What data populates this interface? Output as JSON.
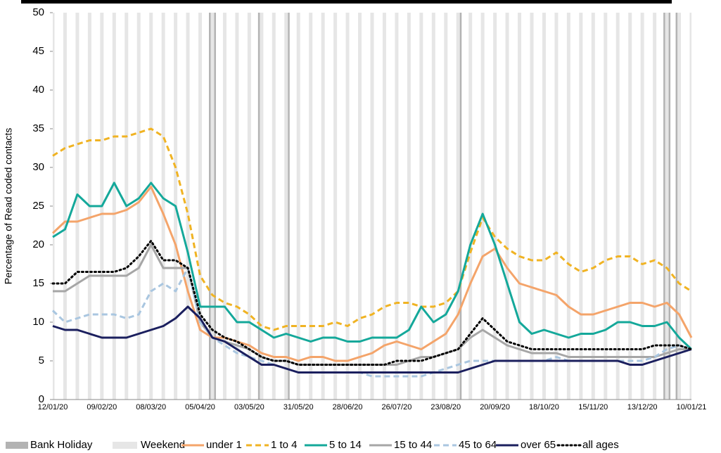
{
  "chart_data": {
    "type": "line",
    "y_label": "Percentage of Read coded contacts",
    "bank_holiday_label": "Bank Holiday",
    "weekend_label": "Weekend",
    "categories": [
      "12/01/20",
      null,
      null,
      null,
      "09/02/20",
      null,
      null,
      null,
      "08/03/20",
      null,
      null,
      null,
      "05/04/20",
      null,
      null,
      null,
      "03/05/20",
      null,
      null,
      null,
      "31/05/20",
      null,
      null,
      null,
      "28/06/20",
      null,
      null,
      null,
      "26/07/20",
      null,
      null,
      null,
      "23/08/20",
      null,
      null,
      null,
      "20/09/20",
      null,
      null,
      null,
      "18/10/20",
      null,
      null,
      null,
      "15/11/20",
      null,
      null,
      null,
      "13/12/20",
      null,
      null,
      null,
      "10/01/21"
    ],
    "ylim": [
      0,
      50
    ],
    "yticks": [
      0,
      5,
      10,
      15,
      20,
      25,
      30,
      35,
      40,
      45,
      50
    ],
    "series": [
      {
        "name": "under 1",
        "color": "#f4a46a",
        "style": "solid",
        "values": [
          21.5,
          23,
          23,
          23.5,
          24,
          24,
          24.5,
          25.5,
          27.5,
          24,
          20,
          14,
          9,
          8,
          8,
          7.5,
          7,
          6,
          5.5,
          5.5,
          5,
          5.5,
          5.5,
          5,
          5,
          5.5,
          6,
          7,
          7.5,
          7,
          6.5,
          7.5,
          8.5,
          11,
          15,
          18.5,
          19.5,
          17,
          15,
          14.5,
          14,
          13.5,
          12,
          11,
          11,
          11.5,
          12,
          12.5,
          12.5,
          12,
          12.5,
          11,
          8
        ]
      },
      {
        "name": "1 to 4",
        "color": "#f0b323",
        "style": "dashed",
        "values": [
          31.5,
          32.5,
          33,
          33.5,
          33.5,
          34,
          34,
          34.5,
          35,
          34,
          30,
          24,
          16,
          13.5,
          12.5,
          12,
          11,
          9.5,
          9,
          9.5,
          9.5,
          9.5,
          9.5,
          10,
          9.5,
          10.5,
          11,
          12,
          12.5,
          12.5,
          12,
          12,
          12.5,
          14,
          19,
          23.5,
          21,
          19.5,
          18.5,
          18,
          18,
          19,
          17.5,
          16.5,
          17,
          18,
          18.5,
          18.5,
          17.5,
          18,
          17,
          15,
          14
        ]
      },
      {
        "name": "5 to 14",
        "color": "#14a89a",
        "style": "solid",
        "values": [
          21,
          22,
          26.5,
          25,
          25,
          28,
          25,
          26,
          28,
          26,
          25,
          19,
          12,
          12,
          12,
          10,
          10,
          9,
          8,
          8.5,
          8,
          7.5,
          8,
          8,
          7.5,
          7.5,
          8,
          8,
          8,
          9,
          12,
          10,
          11,
          14,
          20,
          24,
          20,
          15,
          10,
          8.5,
          9,
          8.5,
          8,
          8.5,
          8.5,
          9,
          10,
          10,
          9.5,
          9.5,
          10,
          8,
          6.5
        ]
      },
      {
        "name": "15 to 44",
        "color": "#a6a6a6",
        "style": "solid",
        "values": [
          14,
          14,
          15,
          16,
          16,
          16,
          16,
          17,
          20,
          17,
          17,
          17,
          10,
          8,
          7.5,
          7,
          6.5,
          5.5,
          5,
          5,
          4.5,
          4.5,
          4.5,
          4.5,
          4.5,
          4.5,
          4.5,
          4.5,
          4.5,
          5,
          5.5,
          5.5,
          6,
          6.5,
          8,
          9,
          8,
          7,
          6.5,
          6,
          6,
          6,
          5.5,
          5.5,
          5.5,
          5.5,
          5.5,
          5.5,
          5.5,
          5.5,
          6,
          6.5,
          6.5
        ]
      },
      {
        "name": "45 to 64",
        "color": "#a9c6e0",
        "style": "dashed",
        "values": [
          11.5,
          10,
          10.5,
          11,
          11,
          11,
          10.5,
          11,
          14,
          15,
          14,
          17,
          10,
          8,
          7,
          6,
          5.5,
          5,
          4.5,
          4,
          3.5,
          3.5,
          3.5,
          3.5,
          3.5,
          3.5,
          3,
          3,
          3,
          3,
          3,
          3.5,
          4,
          4.5,
          5,
          5,
          5,
          5,
          5,
          5,
          5,
          5.5,
          5,
          5,
          5,
          5,
          5,
          5,
          5,
          5.5,
          6.5,
          7,
          6.5
        ]
      },
      {
        "name": "over 65",
        "color": "#1b1f5e",
        "style": "solid",
        "values": [
          9.5,
          9,
          9,
          8.5,
          8,
          8,
          8,
          8.5,
          9,
          9.5,
          10.5,
          12,
          10.5,
          8,
          7.5,
          6.5,
          5.5,
          4.5,
          4.5,
          4,
          3.5,
          3.5,
          3.5,
          3.5,
          3.5,
          3.5,
          3.5,
          3.5,
          3.5,
          3.5,
          3.5,
          3.5,
          3.5,
          3.5,
          4,
          4.5,
          5,
          5,
          5,
          5,
          5,
          5,
          5,
          5,
          5,
          5,
          5,
          4.5,
          4.5,
          5,
          5.5,
          6,
          6.5
        ]
      },
      {
        "name": "all ages",
        "color": "#000000",
        "style": "dotted",
        "values": [
          15,
          15,
          16.5,
          16.5,
          16.5,
          16.5,
          17,
          18.5,
          20.5,
          18,
          18,
          17,
          11,
          9,
          8,
          7.5,
          6.5,
          5.5,
          5,
          5,
          4.5,
          4.5,
          4.5,
          4.5,
          4.5,
          4.5,
          4.5,
          4.5,
          5,
          5,
          5,
          5.5,
          6,
          6.5,
          8.5,
          10.5,
          9,
          7.5,
          7,
          6.5,
          6.5,
          6.5,
          6.5,
          6.5,
          6.5,
          6.5,
          6.5,
          6.5,
          6.5,
          7,
          7,
          7,
          6.5
        ]
      }
    ]
  }
}
